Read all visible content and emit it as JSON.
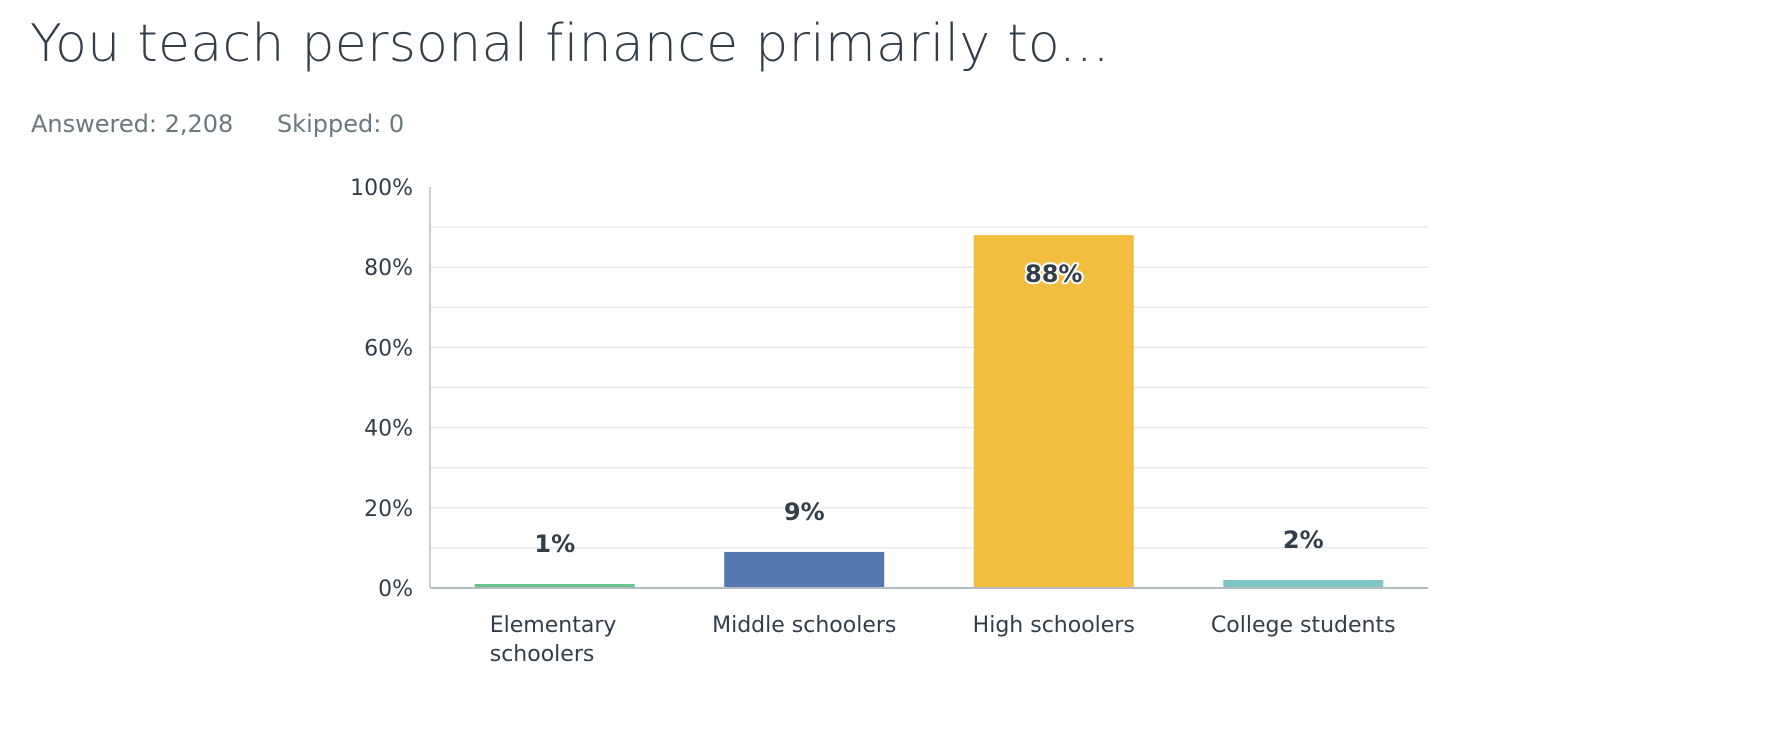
{
  "question": {
    "title": "You teach personal finance primarily to...",
    "answered_label": "Answered: 2,208",
    "skipped_label": "Skipped: 0"
  },
  "colors": {
    "grid": "#e6e9eb",
    "axis": "#b5bcc0",
    "tick_text": "#333e48",
    "value_label": "#333e48"
  },
  "chart_data": {
    "type": "bar",
    "title": "",
    "xlabel": "",
    "ylabel": "",
    "ylim": [
      0,
      100
    ],
    "y_ticks": [
      "0%",
      "20%",
      "40%",
      "60%",
      "80%",
      "100%"
    ],
    "grid": true,
    "categories": [
      "Elementary schoolers",
      "Middle schoolers",
      "High schoolers",
      "College students"
    ],
    "category_lines": [
      [
        "Elementary",
        "schoolers"
      ],
      [
        "Middle schoolers"
      ],
      [
        "High schoolers"
      ],
      [
        "College students"
      ]
    ],
    "values": [
      1,
      9,
      88,
      2
    ],
    "value_labels": [
      "1%",
      "9%",
      "88%",
      "2%"
    ],
    "bar_colors": [
      "#6bc18a",
      "#5479b0",
      "#f2be40",
      "#7cc6c8"
    ]
  }
}
